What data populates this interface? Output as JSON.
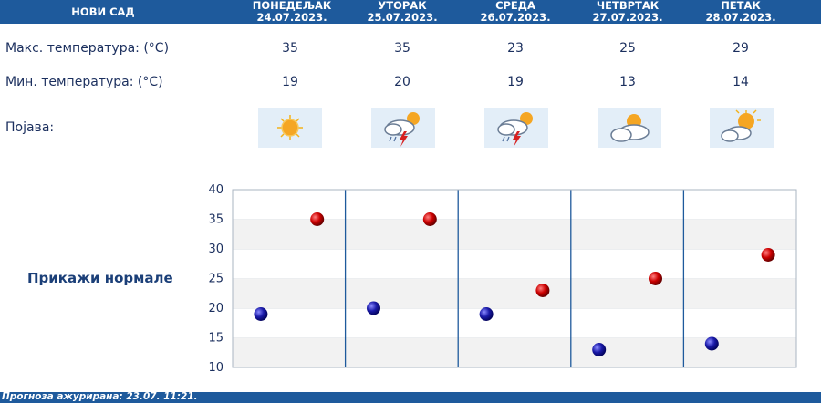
{
  "header": {
    "city": "НОВИ САД",
    "days": [
      {
        "name": "ПОНЕДЕЉАК",
        "date": "24.07.2023."
      },
      {
        "name": "УТОРАК",
        "date": "25.07.2023."
      },
      {
        "name": "СРЕДА",
        "date": "26.07.2023."
      },
      {
        "name": "ЧЕТВРТАК",
        "date": "27.07.2023."
      },
      {
        "name": "ПЕТАК",
        "date": "28.07.2023."
      }
    ]
  },
  "rows": {
    "max_label": "Макс. температура: (°C)",
    "min_label": "Мин. температура: (°C)",
    "phenomenon_label": "Појава:",
    "max_values": [
      "35",
      "35",
      "23",
      "25",
      "29"
    ],
    "min_values": [
      "19",
      "20",
      "19",
      "13",
      "14"
    ],
    "icons": [
      "sunny-icon",
      "thunderstorm-icon",
      "thunderstorm-icon",
      "partly-cloudy-icon",
      "partly-cloudy-icon"
    ]
  },
  "show_normals": "Прикажи нормале",
  "footer": {
    "text": "Прогноза ажурирана:  23.07. 11:21."
  },
  "colors": {
    "header_bg": "#1e5a9c",
    "max_marker": "#cc0000",
    "min_marker": "#1a1aa8",
    "icon_bg": "#e3eef8"
  },
  "chart_data": {
    "type": "scatter",
    "categories": [
      "24.07.2023.",
      "25.07.2023.",
      "26.07.2023.",
      "27.07.2023.",
      "28.07.2023."
    ],
    "series": [
      {
        "values": [
          35,
          35,
          23,
          25,
          29
        ]
      },
      {
        "values": [
          19,
          20,
          19,
          13,
          14
        ]
      }
    ],
    "ylim": [
      10,
      40
    ],
    "yticks": [
      "40",
      "35",
      "30",
      "25",
      "20",
      "15",
      "10"
    ],
    "grid": true
  }
}
